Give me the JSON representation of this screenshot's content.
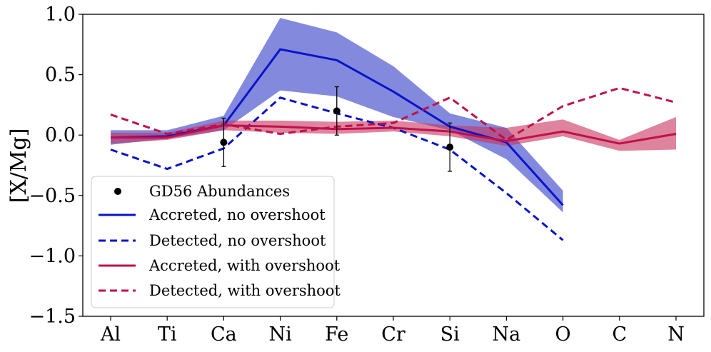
{
  "chart_data": {
    "type": "line",
    "title": "",
    "xlabel": "",
    "ylabel": "[X/Mg]",
    "ylim": [
      -1.5,
      1.0
    ],
    "yticks": [
      -1.5,
      -1.0,
      -0.5,
      0.0,
      0.5,
      1.0
    ],
    "ytick_labels": [
      "−1.5",
      "−1.0",
      "−0.5",
      "0.0",
      "0.5",
      "1.0"
    ],
    "categories": [
      "Al",
      "Ti",
      "Ca",
      "Ni",
      "Fe",
      "Cr",
      "Si",
      "Na",
      "O",
      "C",
      "N"
    ],
    "legend_position": "lower-left",
    "colors": {
      "blue": "#0a14c8",
      "blue_band": "#2a34c4",
      "red": "#c0104a",
      "red_band": "#c8325f",
      "points": "#000000"
    },
    "points": {
      "name": "GD56 Abundances",
      "x": [
        "Ca",
        "Fe",
        "Si"
      ],
      "y": [
        -0.06,
        0.2,
        -0.1
      ],
      "err": [
        0.2,
        0.2,
        0.2
      ]
    },
    "series": [
      {
        "name": "Accreted, no overshoot",
        "style": "solid",
        "color_key": "blue",
        "values": [
          -0.02,
          -0.01,
          0.08,
          0.71,
          0.62,
          0.36,
          0.07,
          -0.06,
          -0.58,
          null,
          null
        ],
        "band_lower": [
          -0.08,
          -0.03,
          0.04,
          0.37,
          0.32,
          0.15,
          0.04,
          -0.2,
          -0.64,
          null,
          null
        ],
        "band_upper": [
          0.04,
          0.04,
          0.16,
          0.97,
          0.85,
          0.57,
          0.18,
          0.06,
          -0.46,
          null,
          null
        ]
      },
      {
        "name": "Detected, no overshoot",
        "style": "dashed",
        "color_key": "blue",
        "values": [
          -0.12,
          -0.28,
          -0.11,
          0.31,
          0.18,
          0.06,
          -0.12,
          -0.48,
          -0.87,
          null,
          null
        ]
      },
      {
        "name": "Accreted, with overshoot",
        "style": "solid",
        "color_key": "red",
        "values": [
          -0.02,
          -0.02,
          0.08,
          0.07,
          0.05,
          0.06,
          0.03,
          -0.05,
          0.03,
          -0.07,
          0.01
        ],
        "band_lower": [
          -0.07,
          -0.04,
          0.04,
          0.02,
          0.01,
          0.03,
          -0.01,
          -0.09,
          -0.01,
          -0.13,
          -0.12
        ],
        "band_upper": [
          0.02,
          0.02,
          0.12,
          0.12,
          0.11,
          0.12,
          0.08,
          0.06,
          0.13,
          -0.04,
          0.15
        ]
      },
      {
        "name": "Detected, with overshoot",
        "style": "dashed",
        "color_key": "red",
        "values": [
          0.17,
          0.01,
          0.09,
          0.01,
          0.07,
          0.1,
          0.31,
          -0.04,
          0.24,
          0.39,
          0.27
        ]
      }
    ],
    "legend": [
      "GD56 Abundances",
      "Accreted, no overshoot",
      "Detected, no overshoot",
      "Accreted, with overshoot",
      "Detected, with overshoot"
    ]
  }
}
